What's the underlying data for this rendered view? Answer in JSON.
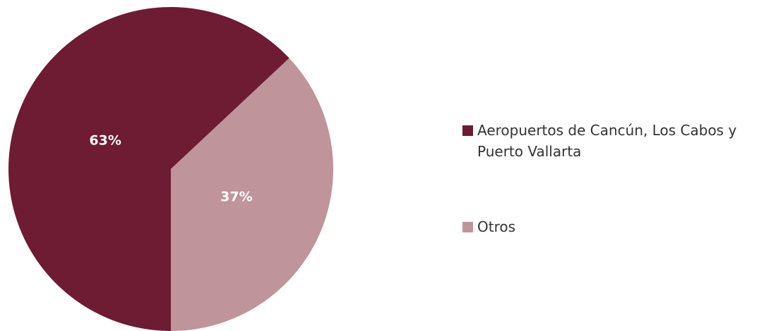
{
  "chart_data": {
    "type": "pie",
    "categories": [
      "Aeropuertos de Cancún, Los Cabos y Puerto Vallarta",
      "Otros"
    ],
    "values": [
      63,
      37
    ],
    "value_labels": [
      "63%",
      "37%"
    ],
    "colors": [
      "#6e1b34",
      "#bf949b"
    ]
  }
}
